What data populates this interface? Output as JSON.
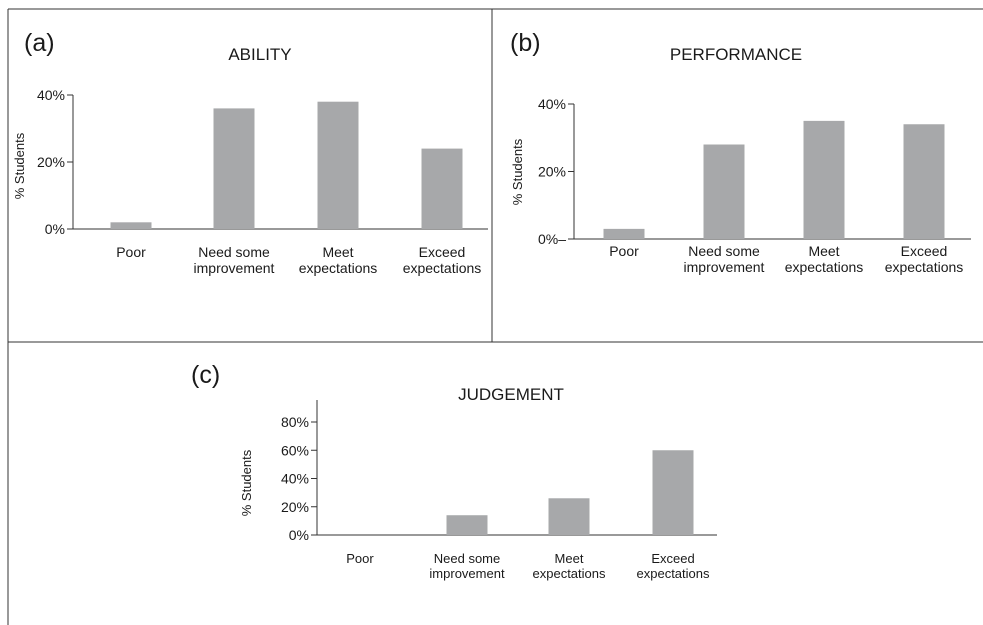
{
  "figure": {
    "colors": {
      "bar": "#a7a8aa",
      "axis": "#333333",
      "border": "#333333"
    }
  },
  "chart_data": [
    {
      "panel_label": "(a)",
      "type": "bar",
      "title": "ABILITY",
      "ylabel": "% Students",
      "xlabel": "",
      "categories": [
        [
          "Poor"
        ],
        [
          "Need some",
          "improvement"
        ],
        [
          "Meet",
          "expectations"
        ],
        [
          "Exceed",
          "expectations"
        ]
      ],
      "values": [
        2,
        36,
        38,
        24
      ],
      "yticks": [
        0,
        20,
        40
      ],
      "ytick_labels": [
        "0%",
        "20%",
        "40%"
      ],
      "ylim": [
        0,
        40
      ],
      "grid": false
    },
    {
      "panel_label": "(b)",
      "type": "bar",
      "title": "PERFORMANCE",
      "ylabel": "% Students",
      "xlabel": "",
      "categories": [
        [
          "Poor"
        ],
        [
          "Need some",
          "improvement"
        ],
        [
          "Meet",
          "expectations"
        ],
        [
          "Exceed",
          "expectations"
        ]
      ],
      "values": [
        3,
        28,
        35,
        34
      ],
      "yticks": [
        0,
        20,
        40
      ],
      "ytick_labels": [
        "0%–",
        "20%",
        "40%"
      ],
      "ylim": [
        0,
        40
      ],
      "grid": false
    },
    {
      "panel_label": "(c)",
      "type": "bar",
      "title": "JUDGEMENT",
      "ylabel": "% Students",
      "xlabel": "",
      "categories": [
        [
          "Poor"
        ],
        [
          "Need some",
          "improvement"
        ],
        [
          "Meet",
          "expectations"
        ],
        [
          "Exceed",
          "expectations"
        ]
      ],
      "values": [
        0,
        14,
        26,
        60
      ],
      "yticks": [
        0,
        20,
        40,
        60,
        80
      ],
      "ytick_labels": [
        "0%",
        "20%",
        "40%",
        "60%",
        "80%"
      ],
      "ylim": [
        0,
        80
      ],
      "grid": false
    }
  ]
}
